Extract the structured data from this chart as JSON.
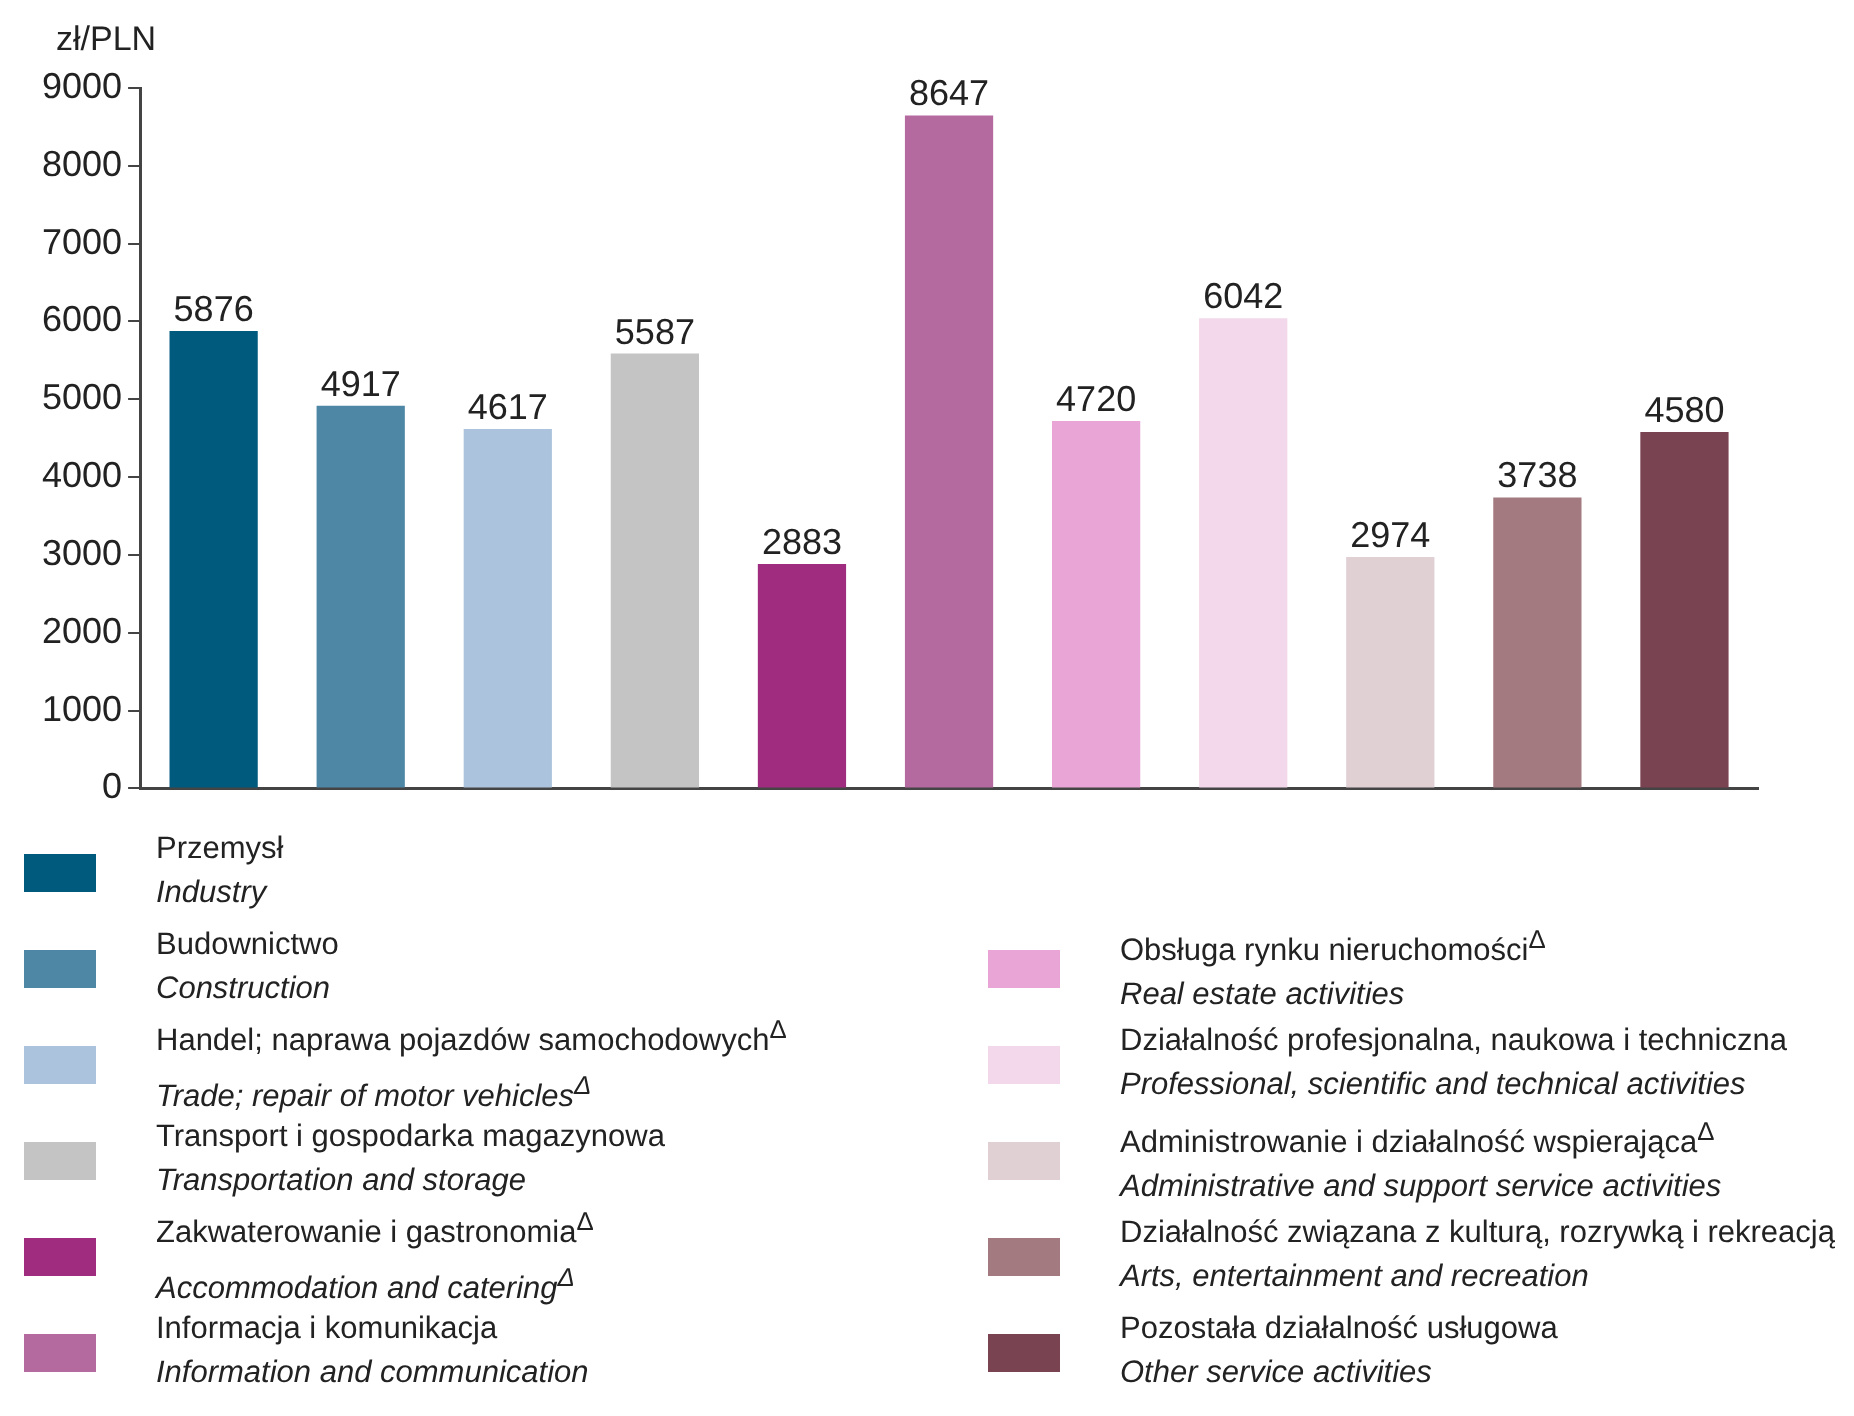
{
  "chart_data": {
    "type": "bar",
    "ylabel": "zł/PLN",
    "categories": [
      null,
      null,
      null,
      null,
      null,
      null,
      null,
      null,
      null,
      null,
      null
    ],
    "series": [
      {
        "name": "Przemysł\nIndustry",
        "color": "#005a7e",
        "values": [
          5876,
          null,
          null,
          null,
          null,
          null,
          null,
          null,
          null,
          null,
          null
        ]
      },
      {
        "name": "Budownictwo\nConstruction",
        "color": "#4e86a6",
        "values": [
          null,
          4917,
          null,
          null,
          null,
          null,
          null,
          null,
          null,
          null,
          null
        ]
      },
      {
        "name": "Handel; naprawa pojazdów samochodowych$^{Δ}$\nTrade; repair of motor vehicles$^{Δ}$",
        "color": "#abc3dc",
        "values": [
          null,
          null,
          4617,
          null,
          null,
          null,
          null,
          null,
          null,
          null,
          null
        ]
      },
      {
        "name": "Transport i gospodarka magazynowa\nTransportation and storage",
        "color": "#c4c4c4",
        "values": [
          null,
          null,
          null,
          5587,
          null,
          null,
          null,
          null,
          null,
          null,
          null
        ]
      },
      {
        "name": "Zakwaterowanie i gastronomia$^{Δ}$\nAccommodation and catering$^{Δ}$",
        "color": "#a02c80",
        "values": [
          null,
          null,
          null,
          null,
          2883,
          null,
          null,
          null,
          null,
          null,
          null
        ]
      },
      {
        "name": "Informacja i komunikacja\nInformation and communication",
        "color": "#b4699f",
        "values": [
          null,
          null,
          null,
          null,
          null,
          8647,
          null,
          null,
          null,
          null,
          null
        ]
      },
      {
        "name": "Obsługa rynku nieruchomości$^{Δ}$\nReal estate activities",
        "color": "#e8a5d6",
        "values": [
          null,
          null,
          null,
          null,
          null,
          null,
          4720,
          null,
          null,
          null,
          null
        ]
      },
      {
        "name": "Działalność profesjonalna, naukowa i techniczna\nProfessional, scientific and technical activities",
        "color": "#f2d8ea",
        "values": [
          null,
          null,
          null,
          null,
          null,
          null,
          null,
          6042,
          null,
          null,
          null
        ]
      },
      {
        "name": "Administrowanie i działalność wspierająca$^{Δ}$\nAdministrative and support service activities",
        "color": "#e0d0d4",
        "values": [
          null,
          null,
          null,
          null,
          null,
          null,
          null,
          null,
          2974,
          null,
          null
        ]
      },
      {
        "name": "Działalność związana z kulturą, rozrywką i rekreacją\nArts, entertainment and recreation",
        "color": "#a27a80",
        "values": [
          null,
          null,
          null,
          null,
          null,
          null,
          null,
          null,
          null,
          3738,
          null
        ]
      },
      {
        "name": "Pozostała działalność usługowa\nOther service activities",
        "color": "#7a4352",
        "values": [
          null,
          null,
          null,
          null,
          null,
          null,
          null,
          null,
          null,
          null,
          4580
        ]
      }
    ],
    "ylim": [
      0,
      9000
    ],
    "yticks": [
      0,
      1000,
      2000,
      3000,
      4000,
      5000,
      6000,
      7000,
      8000,
      9000
    ],
    "grid": false,
    "data_labels": true,
    "legend": "bottom"
  }
}
